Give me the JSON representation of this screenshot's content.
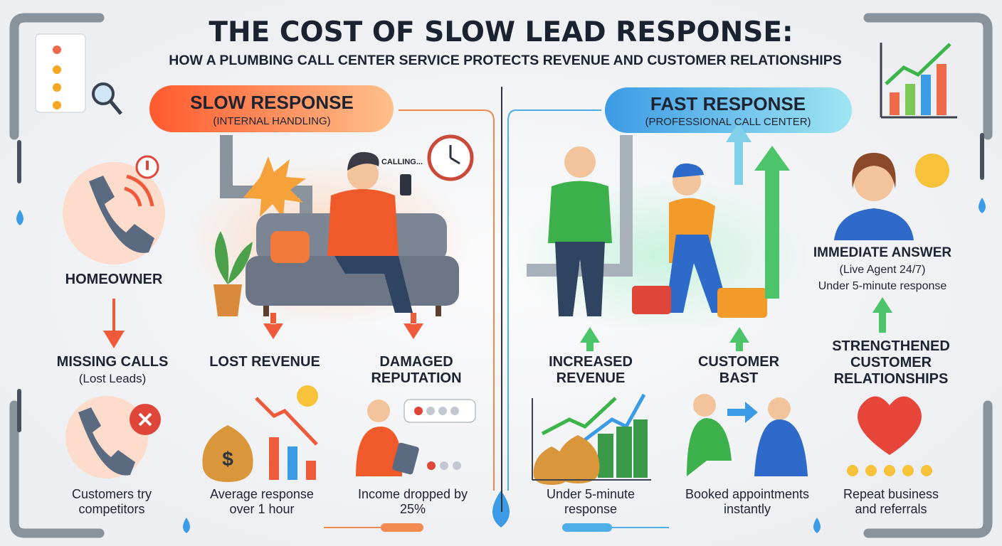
{
  "header": {
    "title": "THE COST OF SLOW LEAD RESPONSE:",
    "subtitle": "HOW A PLUMBING CALL CENTER SERVICE PROTECTS REVENUE AND CUSTOMER RELATIONSHIPS"
  },
  "homeowner": {
    "label": "HOMEOWNER",
    "missing": "MISSING CALLS",
    "missing_note": "(Lost Leads)",
    "caption": "Customers try competitors"
  },
  "slow": {
    "heading": "SLOW RESPONSE",
    "subheading": "(INTERNAL HANDLING)",
    "calling": "CALLING...",
    "items": [
      {
        "label": "LOST REVENUE",
        "caption": "Average response over 1 hour"
      },
      {
        "label": "DAMAGED REPUTATION",
        "caption": "Income dropped by 25%"
      }
    ]
  },
  "fast": {
    "heading": "FAST RESPONSE",
    "subheading": "(PROFESSIONAL CALL CENTER)",
    "items": [
      {
        "label": "INCREASED REVENUE",
        "caption": "Under 5-minute response"
      },
      {
        "label": "CUSTOMER BAST",
        "caption": "Booked appointments instantly"
      }
    ],
    "agent": {
      "label": "IMMEDIATE ANSWER",
      "note": "(Live Agent 24/7)",
      "detail": "Under 5-minute response"
    },
    "relationships": {
      "label": "STRENGTHENED CUSTOMER RELATIONSHIPS",
      "caption": "Repeat business and referrals"
    }
  }
}
